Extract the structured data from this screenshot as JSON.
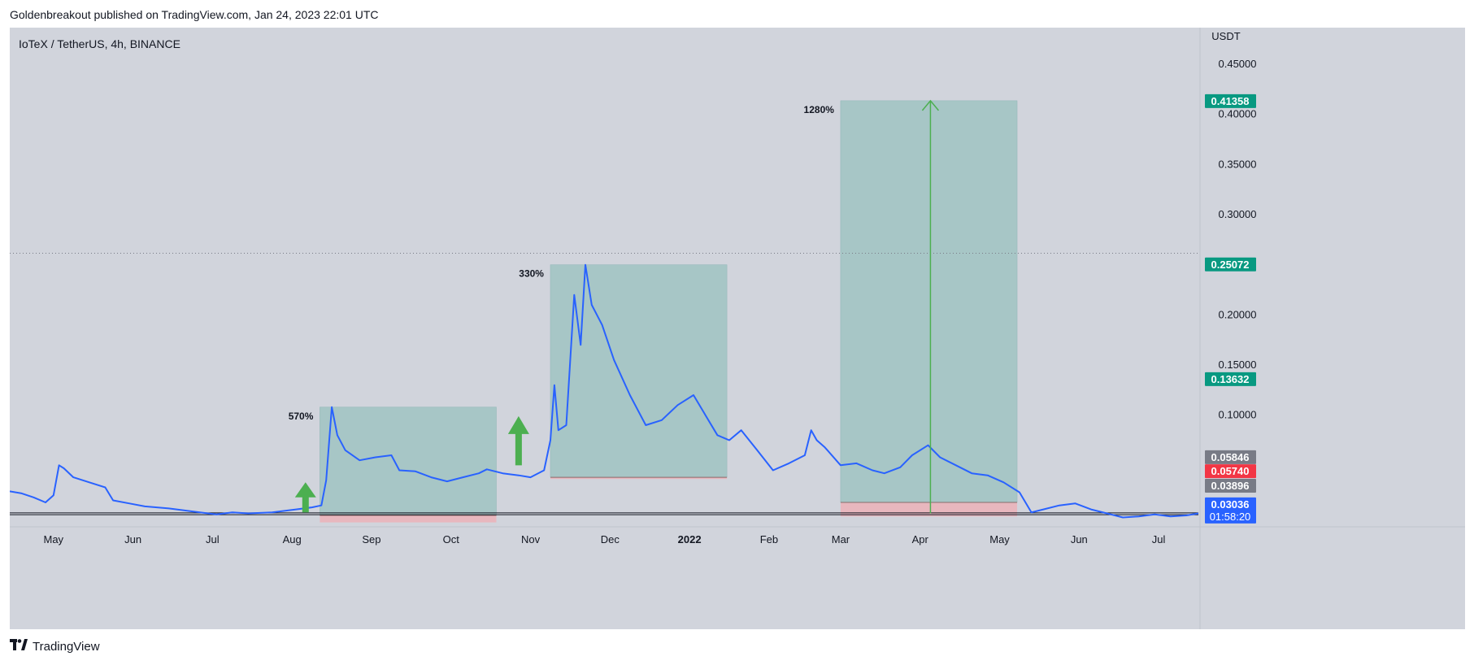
{
  "header": {
    "published": "Goldenbreakout published on TradingView.com, Jan 24, 2023 22:01 UTC"
  },
  "symbol": "IoTeX / TetherUS, 4h, BINANCE",
  "footer": {
    "brand": "TradingView",
    "logo": "tv-logo-icon"
  },
  "colors": {
    "price_line": "#2962ff",
    "profit_zone": "#a7c6c6",
    "loss_zone": "#e8b7be",
    "arrow": "#4caf50",
    "badge_green": "#089981",
    "badge_red": "#f23645",
    "badge_gray": "#787b86",
    "badge_blue": "#2962ff"
  },
  "chart_data": {
    "type": "line",
    "currency": "USDT",
    "ylim": [
      0.0,
      0.48
    ],
    "y_ticks": [
      0.1,
      0.15,
      0.2,
      0.25,
      0.3,
      0.35,
      0.4,
      0.45
    ],
    "y_tick_labels": [
      "0.10000",
      "0.15000",
      "0.20000",
      "0.25000",
      "0.30000",
      "0.35000",
      "0.40000",
      "0.45000"
    ],
    "x_ticks": [
      {
        "label": "May",
        "t": 0.55,
        "bold": false
      },
      {
        "label": "Jun",
        "t": 1.55,
        "bold": false
      },
      {
        "label": "Jul",
        "t": 2.55,
        "bold": false
      },
      {
        "label": "Aug",
        "t": 3.55,
        "bold": false
      },
      {
        "label": "Sep",
        "t": 4.55,
        "bold": false
      },
      {
        "label": "Oct",
        "t": 5.55,
        "bold": false
      },
      {
        "label": "Nov",
        "t": 6.55,
        "bold": false
      },
      {
        "label": "Dec",
        "t": 7.55,
        "bold": false
      },
      {
        "label": "2022",
        "t": 8.55,
        "bold": true
      },
      {
        "label": "Feb",
        "t": 9.55,
        "bold": false
      },
      {
        "label": "Mar",
        "t": 10.45,
        "bold": false
      },
      {
        "label": "Apr",
        "t": 11.45,
        "bold": false
      },
      {
        "label": "May",
        "t": 12.45,
        "bold": false
      },
      {
        "label": "Jun",
        "t": 13.45,
        "bold": false
      },
      {
        "label": "Jul",
        "t": 14.45,
        "bold": false
      }
    ],
    "x_range": [
      0.0,
      14.95
    ],
    "series": [
      {
        "points": [
          [
            0.0,
            0.024
          ],
          [
            0.15,
            0.022
          ],
          [
            0.3,
            0.018
          ],
          [
            0.45,
            0.013
          ],
          [
            0.55,
            0.02
          ],
          [
            0.62,
            0.05
          ],
          [
            0.68,
            0.047
          ],
          [
            0.8,
            0.038
          ],
          [
            1.0,
            0.033
          ],
          [
            1.2,
            0.028
          ],
          [
            1.3,
            0.015
          ],
          [
            1.5,
            0.012
          ],
          [
            1.7,
            0.009
          ],
          [
            2.0,
            0.007
          ],
          [
            2.3,
            0.004
          ],
          [
            2.6,
            0.001
          ],
          [
            2.8,
            0.003
          ],
          [
            3.0,
            0.002
          ],
          [
            3.3,
            0.003
          ],
          [
            3.6,
            0.006
          ],
          [
            3.8,
            0.008
          ],
          [
            3.92,
            0.01
          ],
          [
            3.98,
            0.035
          ],
          [
            4.05,
            0.108
          ],
          [
            4.12,
            0.08
          ],
          [
            4.22,
            0.065
          ],
          [
            4.4,
            0.055
          ],
          [
            4.6,
            0.058
          ],
          [
            4.8,
            0.06
          ],
          [
            4.9,
            0.045
          ],
          [
            5.1,
            0.044
          ],
          [
            5.3,
            0.038
          ],
          [
            5.5,
            0.034
          ],
          [
            5.7,
            0.038
          ],
          [
            5.9,
            0.042
          ],
          [
            6.0,
            0.046
          ],
          [
            6.2,
            0.042
          ],
          [
            6.4,
            0.04
          ],
          [
            6.55,
            0.038
          ],
          [
            6.72,
            0.045
          ],
          [
            6.8,
            0.075
          ],
          [
            6.85,
            0.13
          ],
          [
            6.9,
            0.085
          ],
          [
            7.0,
            0.09
          ],
          [
            7.1,
            0.22
          ],
          [
            7.18,
            0.17
          ],
          [
            7.24,
            0.25
          ],
          [
            7.32,
            0.21
          ],
          [
            7.45,
            0.19
          ],
          [
            7.6,
            0.155
          ],
          [
            7.8,
            0.12
          ],
          [
            8.0,
            0.09
          ],
          [
            8.2,
            0.095
          ],
          [
            8.4,
            0.11
          ],
          [
            8.6,
            0.12
          ],
          [
            8.75,
            0.1
          ],
          [
            8.9,
            0.08
          ],
          [
            9.05,
            0.075
          ],
          [
            9.2,
            0.085
          ],
          [
            9.4,
            0.065
          ],
          [
            9.6,
            0.045
          ],
          [
            9.8,
            0.052
          ],
          [
            10.0,
            0.06
          ],
          [
            10.08,
            0.085
          ],
          [
            10.15,
            0.075
          ],
          [
            10.25,
            0.068
          ],
          [
            10.45,
            0.05
          ],
          [
            10.65,
            0.052
          ],
          [
            10.85,
            0.045
          ],
          [
            11.0,
            0.042
          ],
          [
            11.2,
            0.048
          ],
          [
            11.35,
            0.06
          ],
          [
            11.55,
            0.07
          ],
          [
            11.7,
            0.058
          ],
          [
            11.9,
            0.05
          ],
          [
            12.1,
            0.042
          ],
          [
            12.3,
            0.04
          ],
          [
            12.5,
            0.033
          ],
          [
            12.7,
            0.023
          ],
          [
            12.85,
            0.003
          ],
          [
            13.0,
            0.006
          ],
          [
            13.2,
            0.01
          ],
          [
            13.4,
            0.012
          ],
          [
            13.6,
            0.006
          ],
          [
            13.8,
            0.002
          ],
          [
            14.0,
            -0.002
          ],
          [
            14.2,
            -0.001
          ],
          [
            14.4,
            0.001
          ],
          [
            14.6,
            -0.001
          ],
          [
            14.8,
            0.0
          ],
          [
            14.95,
            0.002
          ]
        ]
      }
    ],
    "zones": [
      {
        "label": "570%",
        "x0": 3.9,
        "x1": 6.12,
        "y_top": 0.108,
        "y_base": 0.0,
        "y_loss": -0.007
      },
      {
        "label": "330%",
        "x0": 6.8,
        "x1": 9.02,
        "y_top": 0.25,
        "y_base": 0.038,
        "y_loss": 0.0365
      },
      {
        "label": "1280%",
        "x0": 10.45,
        "x1": 12.67,
        "y_top": 0.4136,
        "y_base": 0.013,
        "y_loss": -0.001
      }
    ],
    "arrows": [
      {
        "type": "block",
        "x": 3.72,
        "y_bottom": 0.003,
        "y_top": 0.033
      },
      {
        "type": "block",
        "x": 6.4,
        "y_bottom": 0.05,
        "y_top": 0.099
      },
      {
        "type": "line",
        "x": 11.58,
        "y_bottom": 0.002,
        "y_top": 0.4136
      }
    ],
    "hlines": [
      {
        "y": 0.2615,
        "style": "dotted",
        "color": "#787b86"
      },
      {
        "y": 0.0007,
        "style": "solid",
        "color": "#131722"
      },
      {
        "y": 0.0025,
        "style": "solid",
        "color": "#131722"
      }
    ],
    "price_badges": [
      {
        "value": "0.41358",
        "y": 0.4136,
        "color": "#089981"
      },
      {
        "value": "0.25072",
        "y": 0.25072,
        "color": "#089981"
      },
      {
        "value": "0.13632",
        "y": 0.13632,
        "color": "#089981"
      },
      {
        "value": "0.05846",
        "y": 0.05846,
        "color": "#787b86"
      },
      {
        "value": "0.05740",
        "y": 0.0445,
        "color": "#f23645"
      },
      {
        "value": "0.03896",
        "y": 0.03,
        "color": "#787b86"
      },
      {
        "value": "0.03036",
        "sub": "01:58:20",
        "y": 0.0115,
        "color": "#2962ff"
      }
    ]
  }
}
